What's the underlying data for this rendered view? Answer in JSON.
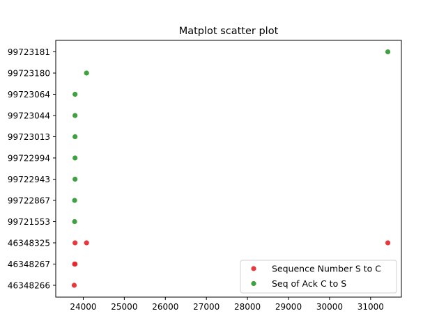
{
  "chart_data": {
    "type": "scatter",
    "title": "Matplot scatter plot",
    "xlabel": "",
    "ylabel": "",
    "xlim": [
      23330,
      31750
    ],
    "x_ticks": [
      24000,
      25000,
      26000,
      27000,
      28000,
      29000,
      30000,
      31000
    ],
    "y_categories": [
      "46348266",
      "46348267",
      "46348325",
      "99721553",
      "99722867",
      "99722943",
      "99722994",
      "99723013",
      "99723044",
      "99723064",
      "99723180",
      "99723181"
    ],
    "legend_position": "lower-right",
    "series": [
      {
        "name": "Sequence Number S to C",
        "color": "#e8262b",
        "points": [
          {
            "x": 23780,
            "y": "46348266"
          },
          {
            "x": 23790,
            "y": "46348267"
          },
          {
            "x": 23800,
            "y": "46348267"
          },
          {
            "x": 23800,
            "y": "46348325"
          },
          {
            "x": 24080,
            "y": "46348325"
          },
          {
            "x": 31420,
            "y": "46348325"
          }
        ]
      },
      {
        "name": "Seq of Ack C to S",
        "color": "#2f992f",
        "points": [
          {
            "x": 23790,
            "y": "99721553"
          },
          {
            "x": 23790,
            "y": "99722867"
          },
          {
            "x": 23800,
            "y": "99722943"
          },
          {
            "x": 23800,
            "y": "99722994"
          },
          {
            "x": 23800,
            "y": "99723013"
          },
          {
            "x": 23800,
            "y": "99723044"
          },
          {
            "x": 23800,
            "y": "99723064"
          },
          {
            "x": 24080,
            "y": "99723180"
          },
          {
            "x": 31420,
            "y": "99723181"
          }
        ]
      }
    ]
  }
}
